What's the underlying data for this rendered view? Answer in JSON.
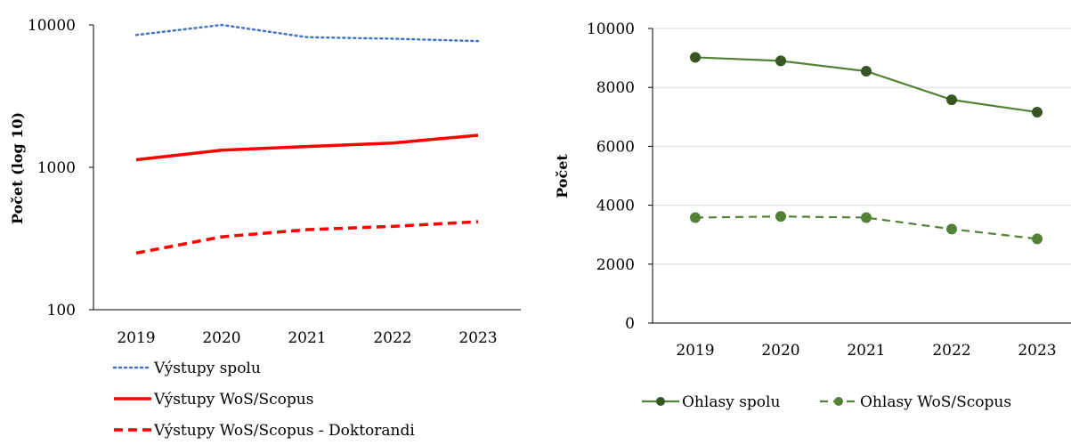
{
  "chart_data": [
    {
      "type": "line",
      "x_scale": "log10",
      "ylabel": "Počet (log 10)",
      "categories": [
        "2019",
        "2020",
        "2021",
        "2022",
        "2023"
      ],
      "ylim": [
        100,
        10000
      ],
      "yticks": [
        "100",
        "1000",
        "10000"
      ],
      "grid": false,
      "legend_position": "bottom",
      "series": [
        {
          "name": "Výstupy spolu",
          "values": [
            8500,
            10000,
            8200,
            8000,
            7700
          ],
          "color": "#4472C4",
          "dash": "dotted"
        },
        {
          "name": "Výstupy WoS/Scopus",
          "values": [
            1130,
            1320,
            1400,
            1480,
            1680
          ],
          "color": "#FF0000",
          "dash": "solid"
        },
        {
          "name": "Výstupy WoS/Scopus - Doktorandi",
          "values": [
            250,
            325,
            365,
            385,
            415
          ],
          "color": "#FF0000",
          "dash": "dashed"
        }
      ]
    },
    {
      "type": "line",
      "ylabel": "Počet",
      "categories": [
        "2019",
        "2020",
        "2021",
        "2022",
        "2023"
      ],
      "ylim": [
        0,
        10000
      ],
      "yticks": [
        "0",
        "2000",
        "4000",
        "6000",
        "8000",
        "10000"
      ],
      "grid": true,
      "legend_position": "bottom",
      "series": [
        {
          "name": "Ohlasy spolu",
          "values": [
            9020,
            8900,
            8550,
            7580,
            7160
          ],
          "color": "#538135",
          "dash": "solid",
          "marker": "circle"
        },
        {
          "name": "Ohlasy WoS/Scopus",
          "values": [
            3580,
            3620,
            3580,
            3190,
            2860
          ],
          "color": "#538135",
          "dash": "dashed",
          "marker": "circle"
        }
      ]
    }
  ]
}
